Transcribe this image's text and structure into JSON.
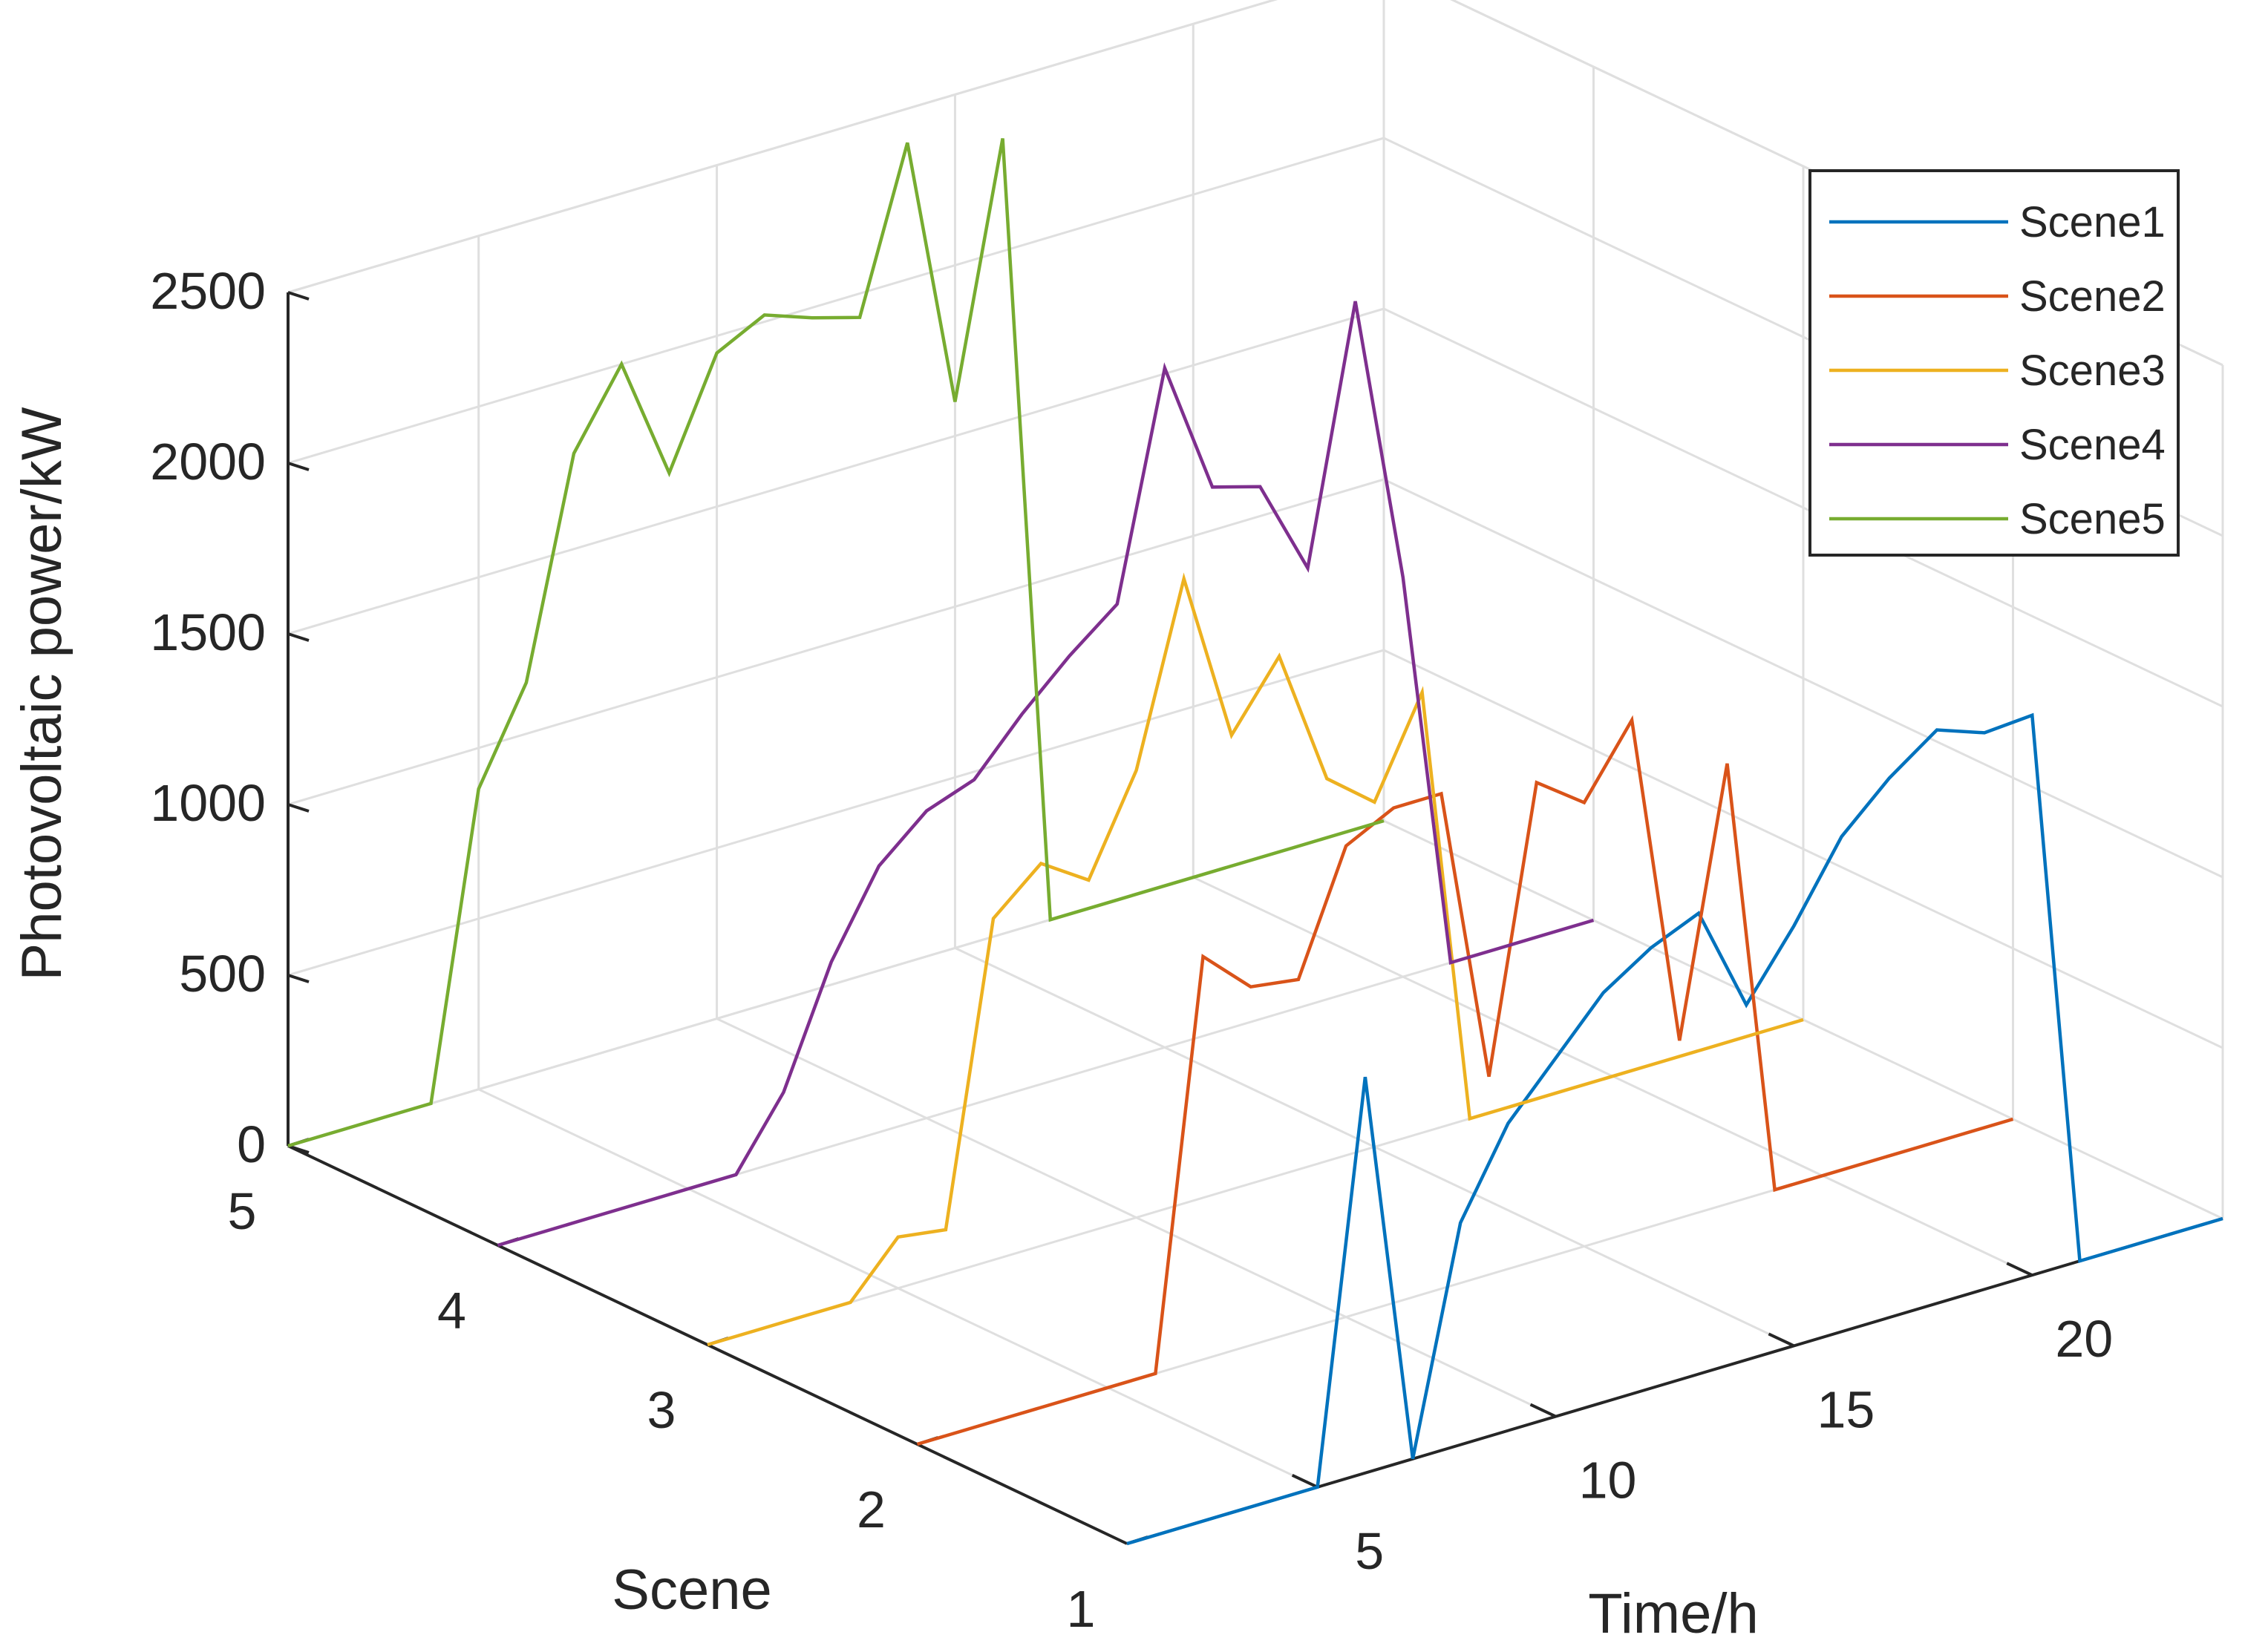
{
  "chart_data": {
    "type": "line",
    "projection": "3d",
    "zlabel": "Photovoltaic power/kW",
    "ylabel": "Scene",
    "xlabel": "Time/h",
    "x": [
      1,
      2,
      3,
      4,
      5,
      6,
      7,
      8,
      9,
      10,
      11,
      12,
      13,
      14,
      15,
      16,
      17,
      18,
      19,
      20,
      21,
      22,
      23,
      24
    ],
    "xlim": [
      1,
      24
    ],
    "ylim": [
      1,
      5
    ],
    "zlim": [
      0,
      2500
    ],
    "xticks": [
      "5",
      "10",
      "15",
      "20"
    ],
    "yticks": [
      "1",
      "2",
      "3",
      "4",
      "5"
    ],
    "zticks": [
      "0",
      "500",
      "1000",
      "1500",
      "2000",
      "2500"
    ],
    "grid": true,
    "legend_position": "top-right",
    "series": [
      {
        "name": "Scene1",
        "scene": 1,
        "color": "#0072BD",
        "values": [
          0,
          0,
          0,
          0,
          0,
          1160,
          0,
          650,
          900,
          1050,
          1200,
          1290,
          1350,
          1040,
          1230,
          1450,
          1580,
          1680,
          1630,
          1640,
          0,
          0,
          0,
          0
        ]
      },
      {
        "name": "Scene2",
        "scene": 2,
        "color": "#D95319",
        "values": [
          0,
          0,
          0,
          0,
          0,
          0,
          1180,
          1050,
          1030,
          1380,
          1450,
          1450,
          580,
          1400,
          1300,
          1500,
          520,
          1290,
          0,
          0,
          0,
          0,
          0,
          0
        ]
      },
      {
        "name": "Scene3",
        "scene": 3,
        "color": "#EDB120",
        "values": [
          0,
          0,
          0,
          0,
          150,
          130,
          1000,
          1120,
          1030,
          1310,
          1830,
          1330,
          1520,
          1120,
          1010,
          1290,
          0,
          0,
          0,
          0,
          0,
          0,
          0,
          0
        ]
      },
      {
        "name": "Scene4",
        "scene": 4,
        "color": "#7E2F8E",
        "values": [
          0,
          0,
          0,
          0,
          0,
          0,
          200,
          540,
          780,
          900,
          950,
          1100,
          1230,
          1340,
          1990,
          1600,
          1560,
          1280,
          2020,
          1170,
          0,
          0,
          0,
          0
        ]
      },
      {
        "name": "Scene5",
        "scene": 5,
        "color": "#77AC30",
        "values": [
          0,
          0,
          0,
          0,
          880,
          1150,
          1780,
          2000,
          1640,
          1950,
          2020,
          1970,
          1930,
          2400,
          1600,
          2330,
          0,
          0,
          0,
          0,
          0,
          0,
          0,
          0
        ]
      }
    ]
  }
}
